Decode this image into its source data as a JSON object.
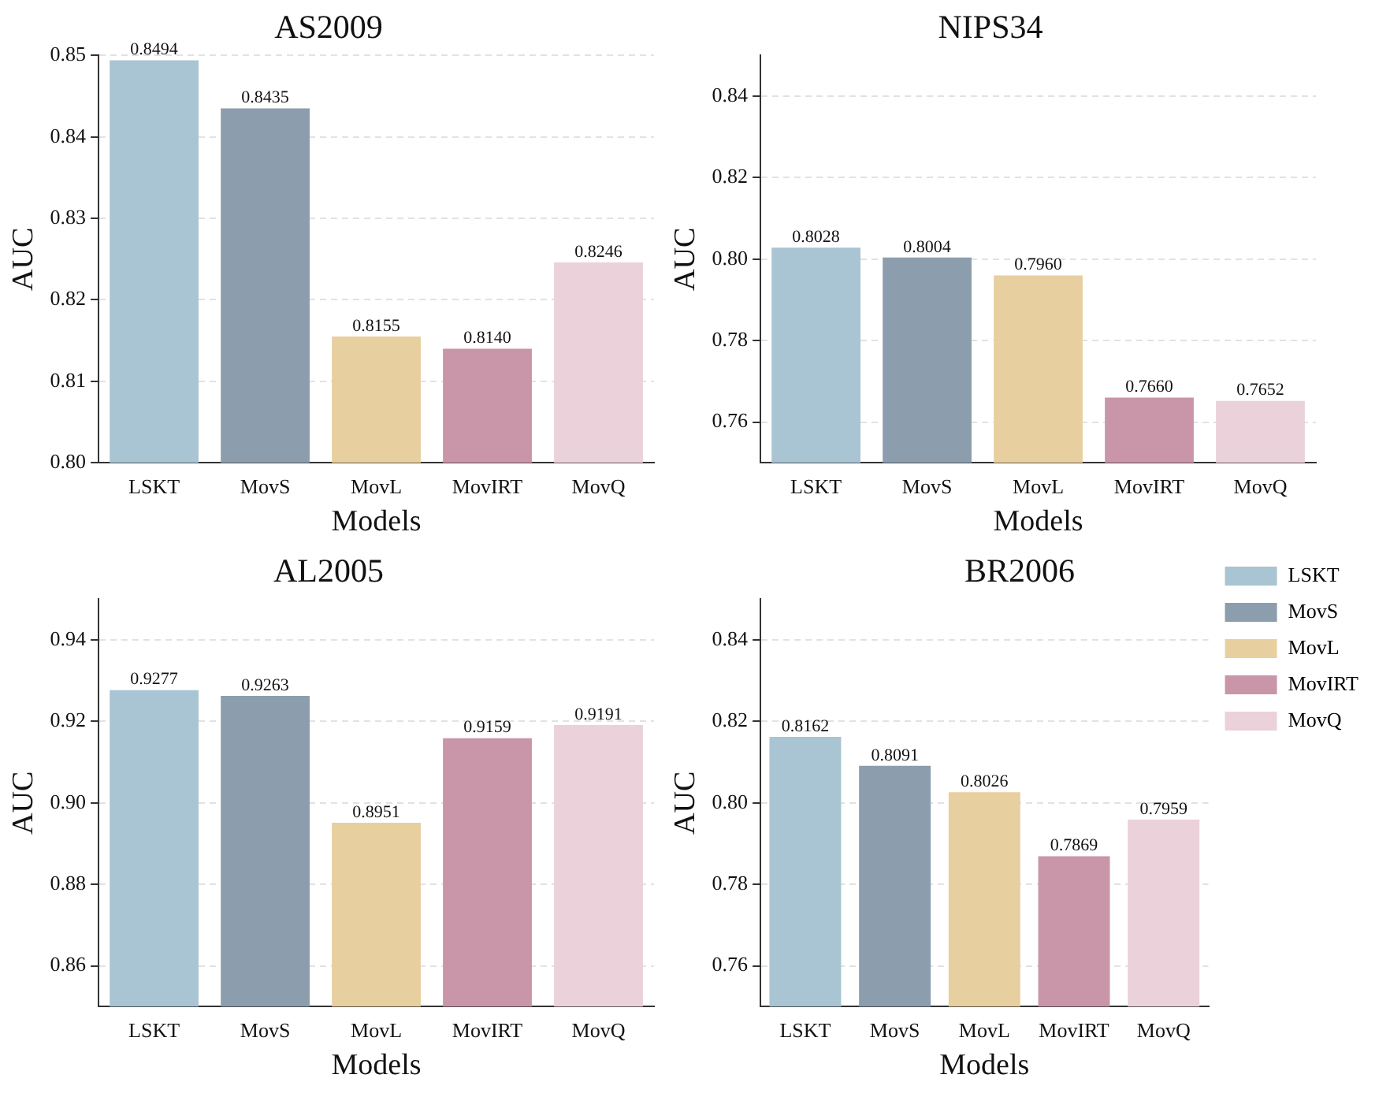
{
  "chart_data": [
    {
      "type": "bar",
      "title": "AS2009",
      "xlabel": "Models",
      "ylabel": "AUC",
      "categories": [
        "LSKT",
        "MovS",
        "MovL",
        "MovIRT",
        "MovQ"
      ],
      "values": [
        0.8494,
        0.8435,
        0.8155,
        0.814,
        0.8246
      ],
      "value_labels": [
        "0.8494",
        "0.8435",
        "0.8155",
        "0.8140",
        "0.8246"
      ],
      "colors": [
        "#a9c4d3",
        "#8c9dad",
        "#e8cf9f",
        "#c995a9",
        "#ebd1d9"
      ],
      "ylim": [
        0.8,
        0.85
      ],
      "yticks": [
        {
          "value": 0.8,
          "label": "0.80"
        },
        {
          "value": 0.81,
          "label": "0.81"
        },
        {
          "value": 0.82,
          "label": "0.82"
        },
        {
          "value": 0.83,
          "label": "0.83"
        },
        {
          "value": 0.84,
          "label": "0.84"
        },
        {
          "value": 0.85,
          "label": "0.85"
        }
      ],
      "grid": "y"
    },
    {
      "type": "bar",
      "title": "NIPS34",
      "xlabel": "Models",
      "ylabel": "AUC",
      "categories": [
        "LSKT",
        "MovS",
        "MovL",
        "MovIRT",
        "MovQ"
      ],
      "values": [
        0.8028,
        0.8004,
        0.796,
        0.766,
        0.7652
      ],
      "value_labels": [
        "0.8028",
        "0.8004",
        "0.7960",
        "0.7660",
        "0.7652"
      ],
      "colors": [
        "#a9c4d3",
        "#8c9dad",
        "#e8cf9f",
        "#c995a9",
        "#ebd1d9"
      ],
      "ylim": [
        0.75,
        0.85
      ],
      "yticks": [
        {
          "value": 0.76,
          "label": "0.76"
        },
        {
          "value": 0.78,
          "label": "0.78"
        },
        {
          "value": 0.8,
          "label": "0.80"
        },
        {
          "value": 0.82,
          "label": "0.82"
        },
        {
          "value": 0.84,
          "label": "0.84"
        }
      ],
      "grid": "y"
    },
    {
      "type": "bar",
      "title": "AL2005",
      "xlabel": "Models",
      "ylabel": "AUC",
      "categories": [
        "LSKT",
        "MovS",
        "MovL",
        "MovIRT",
        "MovQ"
      ],
      "values": [
        0.9277,
        0.9263,
        0.8951,
        0.9159,
        0.9191
      ],
      "value_labels": [
        "0.9277",
        "0.9263",
        "0.8951",
        "0.9159",
        "0.9191"
      ],
      "colors": [
        "#a9c4d3",
        "#8c9dad",
        "#e8cf9f",
        "#c995a9",
        "#ebd1d9"
      ],
      "ylim": [
        0.85,
        0.95
      ],
      "yticks": [
        {
          "value": 0.86,
          "label": "0.86"
        },
        {
          "value": 0.88,
          "label": "0.88"
        },
        {
          "value": 0.9,
          "label": "0.90"
        },
        {
          "value": 0.92,
          "label": "0.92"
        },
        {
          "value": 0.94,
          "label": "0.94"
        }
      ],
      "grid": "y"
    },
    {
      "type": "bar",
      "title": "BR2006",
      "xlabel": "Models",
      "ylabel": "AUC",
      "categories": [
        "LSKT",
        "MovS",
        "MovL",
        "MovIRT",
        "MovQ"
      ],
      "series": [
        {
          "name": "LSKT",
          "color": "#a9c4d3",
          "values": [
            0.8162,
            null,
            null,
            null,
            null
          ],
          "value_labels": [
            "0.8162",
            null,
            null,
            null,
            null
          ]
        },
        {
          "name": "MovS",
          "color": "#8c9dad",
          "values": [
            null,
            0.8091,
            null,
            null,
            null
          ],
          "value_labels": [
            null,
            "0.8091",
            null,
            null,
            null
          ]
        },
        {
          "name": "MovL",
          "color": "#e8cf9f",
          "values": [
            null,
            null,
            0.8026,
            null,
            null
          ],
          "value_labels": [
            null,
            null,
            "0.8026",
            null,
            null
          ]
        },
        {
          "name": "MovIRT",
          "color": "#c995a9",
          "values": [
            null,
            null,
            null,
            0.7869,
            null
          ],
          "value_labels": [
            null,
            null,
            null,
            "0.7869",
            null
          ]
        },
        {
          "name": "MovQ",
          "color": "#ebd1d9",
          "values": [
            null,
            null,
            null,
            null,
            0.7959
          ],
          "value_labels": [
            null,
            null,
            null,
            null,
            "0.7959"
          ]
        }
      ],
      "ylim": [
        0.75,
        0.85
      ],
      "yticks": [
        {
          "value": 0.76,
          "label": "0.76"
        },
        {
          "value": 0.78,
          "label": "0.78"
        },
        {
          "value": 0.8,
          "label": "0.80"
        },
        {
          "value": 0.82,
          "label": "0.82"
        },
        {
          "value": 0.84,
          "label": "0.84"
        }
      ],
      "grid": "y",
      "legend": "right"
    }
  ]
}
